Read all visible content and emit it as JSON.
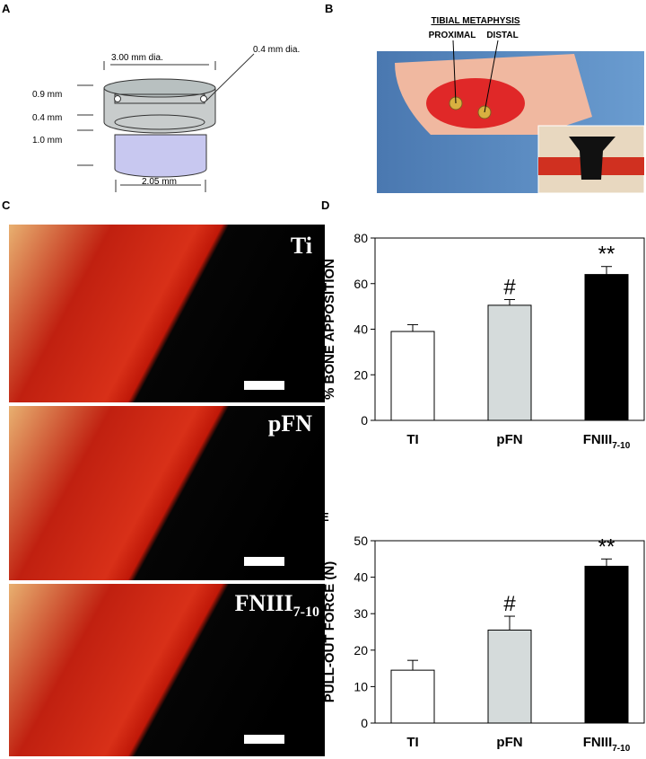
{
  "panels": {
    "a": "A",
    "b": "B",
    "c": "C",
    "d": "D",
    "e": "E"
  },
  "diagram": {
    "top_diameter": "3.00 mm dia.",
    "hole_diameter": "0.4 mm dia.",
    "heights": [
      "0.9 mm",
      "0.4 mm",
      "1.0 mm"
    ],
    "bottom_diameter": "2.05 mm"
  },
  "photo": {
    "title": "TIBIAL METAPHYSIS",
    "proximal": "PROXIMAL",
    "distal": "DISTAL"
  },
  "histology": {
    "labels": [
      {
        "text": "Ti"
      },
      {
        "text": "pFN"
      },
      {
        "text": "FNIII",
        "subscript": "7-10"
      }
    ]
  },
  "chart_data": [
    {
      "type": "bar",
      "ylabel": "% BONE APPOSITION",
      "categories": [
        "TI",
        "pFN",
        "FNIII"
      ],
      "category_subscripts": [
        null,
        null,
        "7-10"
      ],
      "values": [
        39,
        50.5,
        64
      ],
      "errors": [
        3,
        2.5,
        3.5
      ],
      "value_markers": [
        null,
        "#",
        "**"
      ],
      "colors": [
        "#ffffff",
        "#d5dbdb",
        "#000000"
      ],
      "ylim": [
        0,
        80
      ],
      "yticks": [
        0,
        20,
        40,
        60,
        80
      ]
    },
    {
      "type": "bar",
      "ylabel": "PULL-OUT FORCE (N)",
      "categories": [
        "TI",
        "pFN",
        "FNIII"
      ],
      "category_subscripts": [
        null,
        null,
        "7-10"
      ],
      "values": [
        14.5,
        25.5,
        43
      ],
      "errors": [
        2.7,
        3.8,
        2
      ],
      "value_markers": [
        null,
        "#",
        "**"
      ],
      "colors": [
        "#ffffff",
        "#d5dbdb",
        "#000000"
      ],
      "ylim": [
        0,
        50
      ],
      "yticks": [
        0,
        10,
        20,
        30,
        40,
        50
      ]
    }
  ]
}
